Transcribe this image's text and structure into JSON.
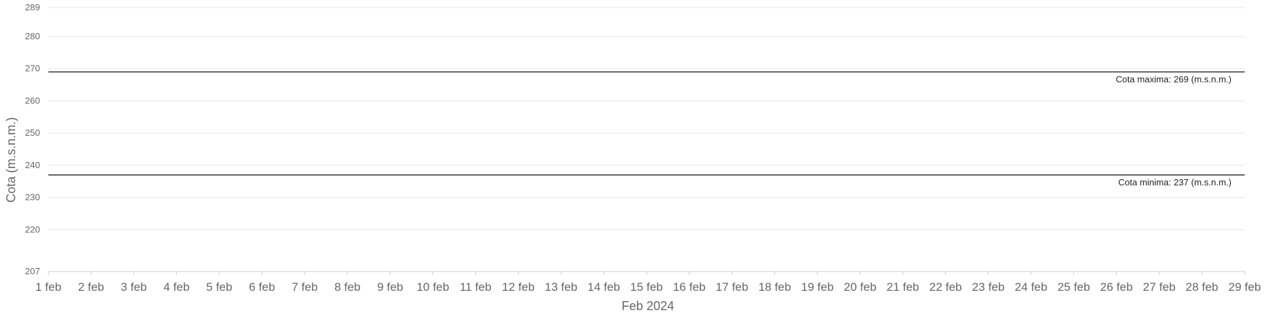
{
  "chart_data": {
    "type": "line",
    "title": "",
    "xlabel": "Feb 2024",
    "ylabel": "Cota (m.s.n.m.)",
    "ylim": [
      207,
      289
    ],
    "y_ticks": [
      207,
      220,
      230,
      240,
      250,
      260,
      270,
      280,
      289
    ],
    "x_ticks": [
      "1 feb",
      "2 feb",
      "3 feb",
      "4 feb",
      "5 feb",
      "6 feb",
      "7 feb",
      "8 feb",
      "9 feb",
      "10 feb",
      "11 feb",
      "12 feb",
      "13 feb",
      "14 feb",
      "15 feb",
      "16 feb",
      "17 feb",
      "18 feb",
      "19 feb",
      "20 feb",
      "21 feb",
      "22 feb",
      "23 feb",
      "24 feb",
      "25 feb",
      "26 feb",
      "27 feb",
      "28 feb",
      "29 feb"
    ],
    "grid": true,
    "series": [],
    "reference_lines": [
      {
        "value": 269,
        "label": "Cota maxima: 269 (m.s.n.m.)",
        "color": "#333333"
      },
      {
        "value": 237,
        "label": "Cota minima: 237 (m.s.n.m.)",
        "color": "#333333"
      }
    ]
  }
}
